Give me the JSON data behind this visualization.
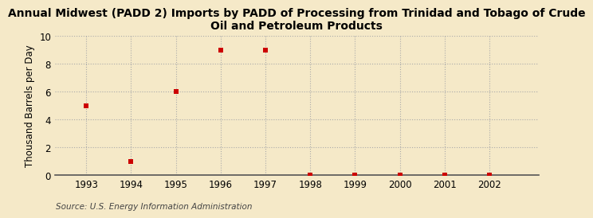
{
  "title": "Annual Midwest (PADD 2) Imports by PADD of Processing from Trinidad and Tobago of Crude\nOil and Petroleum Products",
  "ylabel": "Thousand Barrels per Day",
  "source": "Source: U.S. Energy Information Administration",
  "x": [
    1993,
    1994,
    1995,
    1996,
    1997,
    1998,
    1999,
    2000,
    2001,
    2002
  ],
  "y": [
    5.0,
    1.0,
    6.0,
    9.0,
    9.0,
    0.02,
    0.02,
    0.02,
    0.02,
    0.02
  ],
  "marker_color": "#cc0000",
  "marker_size": 4,
  "background_color": "#f5e9c8",
  "grid_color": "#aaaaaa",
  "xlim": [
    1992.3,
    2003.1
  ],
  "ylim": [
    0,
    10
  ],
  "yticks": [
    0,
    2,
    4,
    6,
    8,
    10
  ],
  "xticks": [
    1993,
    1994,
    1995,
    1996,
    1997,
    1998,
    1999,
    2000,
    2001,
    2002
  ],
  "title_fontsize": 10,
  "ylabel_fontsize": 8.5,
  "tick_fontsize": 8.5,
  "source_fontsize": 7.5
}
